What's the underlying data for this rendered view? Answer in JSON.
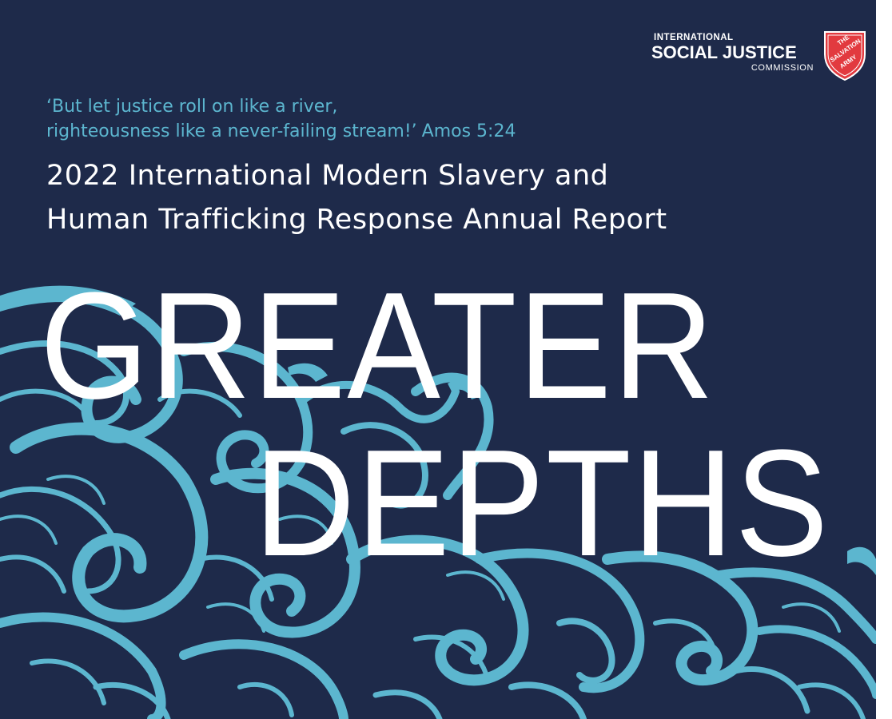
{
  "logo": {
    "org_line1": "INTERNATIONAL",
    "org_line2": "SOCIAL JUSTICE",
    "org_line3": "COMMISSION",
    "shield_line1": "THE",
    "shield_line2": "SALVATION",
    "shield_line3": "ARMY"
  },
  "quote": {
    "line1": "‘But let justice roll on like a river,",
    "line2": "righteousness like a never-failing stream!’",
    "reference": "Amos 5:24"
  },
  "report": {
    "title_line1": "2022 International Modern Slavery and",
    "title_line2": "Human Trafficking Response Annual Report"
  },
  "headline": {
    "word1": "GREATER",
    "word2": "DEPTHS"
  },
  "colors": {
    "background": "#1e2a4a",
    "accent": "#5cb6cf",
    "shield_red": "#e23a3f",
    "text": "#ffffff"
  }
}
